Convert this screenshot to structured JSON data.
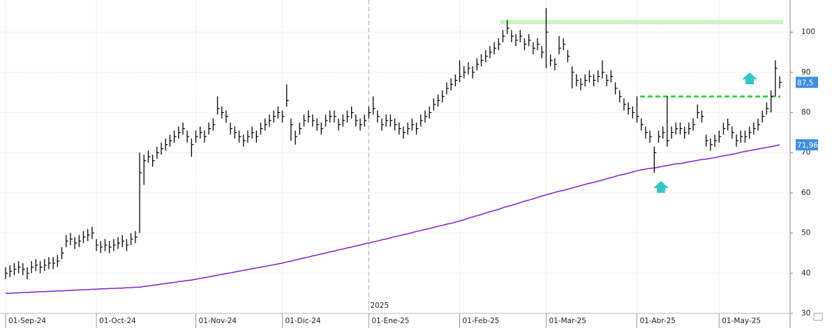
{
  "chart_data": {
    "type": "ohlc",
    "ylim": [
      30,
      108
    ],
    "yticks": [
      30,
      40,
      50,
      60,
      70,
      80,
      90,
      100
    ],
    "grid": true,
    "xticks": [
      {
        "value": 0,
        "label": "01-Sep-24"
      },
      {
        "value": 21,
        "label": "01-Oct-24"
      },
      {
        "value": 44,
        "label": "01-Nov-24"
      },
      {
        "value": 64,
        "label": "01-Dic-24"
      },
      {
        "value": 84,
        "label": "01-Ene-25"
      },
      {
        "value": 105,
        "label": "01-Feb-25"
      },
      {
        "value": 125,
        "label": "01-Mar-25"
      },
      {
        "value": 146,
        "label": "01-Abr-25"
      },
      {
        "value": 165,
        "label": "01-May-25"
      }
    ],
    "year_marker": {
      "value": 84,
      "label": "2025"
    },
    "ohlc": {
      "color": "#000000",
      "high": [
        41.5,
        42,
        42.5,
        43,
        42.5,
        41.5,
        43,
        43.5,
        43,
        43.5,
        44,
        44,
        44.5,
        46.5,
        49.5,
        50,
        49,
        49.5,
        50.5,
        51,
        51.5,
        48.5,
        48,
        48.5,
        48,
        48.5,
        49,
        49.5,
        48.5,
        50,
        50.5,
        70,
        69.5,
        70.5,
        69.5,
        71.5,
        72.5,
        73.5,
        74.5,
        75.5,
        76.5,
        77.5,
        75.5,
        73.5,
        75.5,
        76.5,
        75.5,
        77.5,
        78.5,
        84,
        81.5,
        80.5,
        77.5,
        76.5,
        75.5,
        74.5,
        75.5,
        76.5,
        75.5,
        77.5,
        78.5,
        79.5,
        80.5,
        81.5,
        80.5,
        87,
        78.5,
        75.5,
        77.5,
        79.5,
        80.5,
        79.5,
        78.5,
        77.5,
        79.5,
        80.5,
        80.5,
        78.5,
        79.5,
        80.5,
        81.5,
        79.5,
        78.5,
        79.5,
        81.5,
        84,
        80.5,
        78.5,
        79.5,
        79.5,
        78.5,
        77.5,
        76.5,
        77.5,
        78.5,
        77.5,
        79.5,
        80.5,
        81.5,
        83.5,
        84.5,
        85.5,
        87.5,
        88.5,
        89.5,
        93,
        91.5,
        92.5,
        91.5,
        93.5,
        94.5,
        95.5,
        96.5,
        97.5,
        98.5,
        100.5,
        103,
        100.5,
        99.5,
        100.5,
        98.5,
        99.5,
        97.5,
        98.5,
        96.5,
        106,
        94.5,
        93.5,
        99,
        98.5,
        95.5,
        91.5,
        89.5,
        88.5,
        89.5,
        90.5,
        89.5,
        90.5,
        93,
        89.5,
        90.5,
        87.5,
        85.5,
        83.5,
        82.5,
        81.5,
        84,
        78.5,
        76.5,
        75.5,
        71.5,
        75.5,
        76.5,
        84,
        76.5,
        77.5,
        77.5,
        76.5,
        77.5,
        78.5,
        82,
        80.5,
        74.5,
        73.5,
        74.5,
        75.5,
        77.5,
        78.5,
        76.5,
        74.5,
        75.5,
        75.5,
        76.5,
        77.5,
        78.5,
        80.5,
        82.5,
        85.5,
        93,
        89
      ],
      "low": [
        38.5,
        39,
        39.5,
        40,
        39.5,
        38.5,
        40,
        40.5,
        40,
        40.5,
        41,
        41,
        41.5,
        43.5,
        46.5,
        47,
        46,
        46.5,
        47.5,
        48,
        48.5,
        45.5,
        45,
        45.5,
        45,
        45.5,
        46,
        46.5,
        45.5,
        47,
        47.5,
        50,
        62,
        67.5,
        66.5,
        68.5,
        69.5,
        70.5,
        71.5,
        72.5,
        73.5,
        74.5,
        72.5,
        69,
        72.5,
        73.5,
        72.5,
        74.5,
        75.5,
        79.5,
        78.5,
        77.5,
        74.5,
        73.5,
        72.5,
        71.5,
        72.5,
        73.5,
        72.5,
        74.5,
        75.5,
        76.5,
        77.5,
        78.5,
        77.5,
        81.5,
        73,
        72,
        74.5,
        76.5,
        77.5,
        76.5,
        75.5,
        74.5,
        76.5,
        77.5,
        77.5,
        75.5,
        76.5,
        77.5,
        78.5,
        76.5,
        75.5,
        76.5,
        78.5,
        79.5,
        77.5,
        75.5,
        76.5,
        76.5,
        75.5,
        74.5,
        73.5,
        74.5,
        75.5,
        74.5,
        76.5,
        77.5,
        78.5,
        80.5,
        81.5,
        82.5,
        84.5,
        85.5,
        86.5,
        87.5,
        88.5,
        89.5,
        88.5,
        90.5,
        91.5,
        92.5,
        93.5,
        94.5,
        95.5,
        97.5,
        99.5,
        97.5,
        96.5,
        97.5,
        95.5,
        96.5,
        94.5,
        95.5,
        93.5,
        91,
        91.5,
        90.5,
        94.5,
        95.5,
        92.5,
        86,
        86.5,
        85.5,
        86.5,
        87.5,
        86.5,
        87.5,
        88.5,
        86.5,
        87.5,
        84.5,
        82.5,
        80.5,
        79.5,
        78.5,
        77.5,
        75.5,
        73.5,
        72.5,
        65,
        72.5,
        73.5,
        71.5,
        73.5,
        74.5,
        74.5,
        73.5,
        74.5,
        75.5,
        78.5,
        77.5,
        71.5,
        70.5,
        71.5,
        72.5,
        74.5,
        75.5,
        73.5,
        71.5,
        72.5,
        72.5,
        73.5,
        74.5,
        75.5,
        77.5,
        79.5,
        80,
        84,
        86
      ],
      "close": [
        40,
        40.5,
        41,
        41.5,
        41,
        40,
        41.5,
        42,
        41.5,
        42,
        42.5,
        42.5,
        43,
        45,
        48,
        48.5,
        47.5,
        48,
        49,
        49.5,
        50,
        47,
        46.5,
        47,
        46.5,
        47,
        47.5,
        48,
        47,
        48.5,
        49,
        65,
        68,
        69,
        68,
        70,
        71,
        72,
        73,
        74,
        75,
        76,
        74,
        72,
        74,
        75,
        74,
        76,
        77,
        81,
        80,
        79,
        76,
        75,
        74,
        73,
        74,
        75,
        74,
        76,
        77,
        78,
        79,
        80,
        79,
        83,
        77,
        74,
        76,
        78,
        79,
        78,
        77,
        76,
        78,
        79,
        79,
        77,
        78,
        79,
        80,
        78,
        77,
        78,
        80,
        81,
        79,
        77,
        78,
        78,
        77,
        76,
        75,
        76,
        77,
        76,
        78,
        79,
        80,
        82,
        83,
        84,
        86,
        87,
        88,
        89,
        90,
        91,
        90,
        92,
        93,
        94,
        95,
        96,
        97,
        99,
        101,
        99,
        98,
        99,
        97,
        98,
        96,
        97,
        95,
        100,
        93,
        92,
        96,
        97,
        94,
        90,
        88,
        87,
        88,
        89,
        88,
        89,
        90,
        88,
        89,
        86,
        84,
        82,
        81,
        80,
        79,
        77,
        75,
        74,
        70,
        74,
        75,
        73,
        75,
        76,
        76,
        75,
        76,
        77,
        80,
        79,
        73,
        72,
        73,
        74,
        76,
        77,
        75,
        73,
        74,
        74,
        75,
        76,
        77,
        79,
        81,
        84,
        91,
        87.5
      ]
    },
    "ma": {
      "color": "#7a1fd0",
      "values": [
        35.0,
        35.0,
        35.1,
        35.1,
        35.2,
        35.2,
        35.3,
        35.3,
        35.4,
        35.4,
        35.5,
        35.5,
        35.6,
        35.6,
        35.7,
        35.7,
        35.8,
        35.8,
        35.9,
        35.9,
        36.0,
        36.0,
        36.1,
        36.1,
        36.2,
        36.2,
        36.3,
        36.3,
        36.4,
        36.4,
        36.5,
        36.5,
        36.7,
        36.8,
        37.0,
        37.1,
        37.3,
        37.4,
        37.6,
        37.7,
        37.9,
        38.0,
        38.2,
        38.3,
        38.5,
        38.7,
        38.9,
        39.1,
        39.3,
        39.5,
        39.7,
        39.9,
        40.1,
        40.3,
        40.5,
        40.7,
        40.9,
        41.1,
        41.3,
        41.5,
        41.7,
        41.9,
        42.1,
        42.3,
        42.5,
        42.8,
        43.0,
        43.3,
        43.5,
        43.8,
        44.0,
        44.3,
        44.5,
        44.8,
        45.0,
        45.3,
        45.5,
        45.8,
        46.0,
        46.3,
        46.5,
        46.8,
        47.0,
        47.3,
        47.5,
        47.8,
        48.0,
        48.3,
        48.5,
        48.8,
        49.1,
        49.3,
        49.6,
        49.8,
        50.1,
        50.4,
        50.6,
        50.9,
        51.1,
        51.4,
        51.7,
        51.9,
        52.2,
        52.4,
        52.7,
        53.0,
        53.3,
        53.7,
        54.0,
        54.3,
        54.6,
        55.0,
        55.3,
        55.6,
        55.9,
        56.3,
        56.6,
        56.9,
        57.2,
        57.6,
        57.9,
        58.2,
        58.5,
        58.9,
        59.2,
        59.5,
        59.8,
        60.1,
        60.4,
        60.6,
        60.9,
        61.2,
        61.5,
        61.8,
        62.1,
        62.4,
        62.6,
        62.9,
        63.2,
        63.5,
        63.8,
        64.1,
        64.4,
        64.6,
        64.9,
        65.2,
        65.5,
        65.7,
        65.9,
        66.1,
        66.2,
        66.4,
        66.6,
        66.8,
        67.0,
        67.2,
        67.3,
        67.5,
        67.7,
        67.9,
        68.1,
        68.3,
        68.4,
        68.6,
        68.8,
        69.0,
        69.2,
        69.4,
        69.6,
        69.8,
        70.1,
        70.3,
        70.5,
        70.7,
        70.9,
        71.1,
        71.3,
        71.5,
        71.7,
        71.96
      ]
    },
    "levels": [
      {
        "value": 102.5,
        "color": "#c6f5c0",
        "style": "solid"
      },
      {
        "value": 84,
        "color": "#1fd11f",
        "style": "dashed"
      }
    ],
    "price_tags": [
      {
        "value": 87.5,
        "label": "87,5",
        "color": "#3d8fe0"
      },
      {
        "value": 71.96,
        "label": "71,96",
        "color": "#3d8fe0"
      }
    ]
  }
}
